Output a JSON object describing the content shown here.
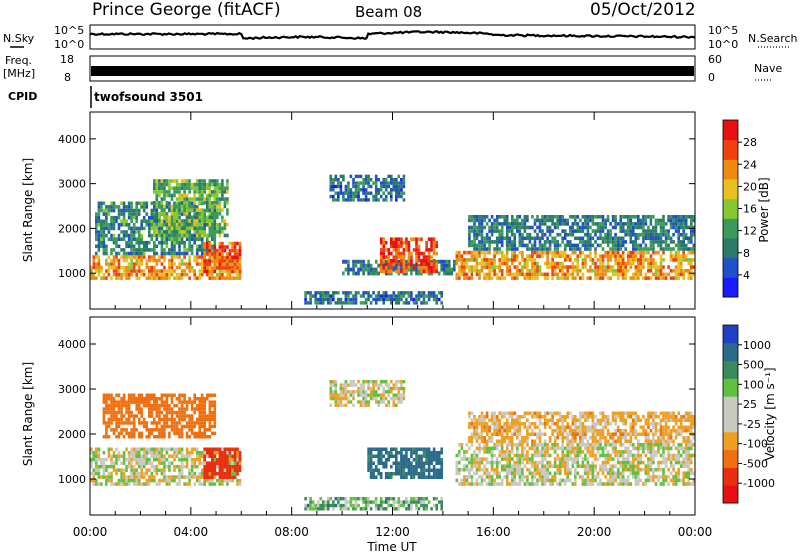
{
  "header": {
    "station": "Prince George (fitACF)",
    "beam": "Beam 08",
    "date": "05/Oct/2012"
  },
  "top_panels": {
    "nsky_label": "N.Sky",
    "nsearch_label": "N.Search",
    "nsky_ticks": [
      "10^5",
      "10^0"
    ],
    "nsearch_ticks": [
      "10^5",
      "10^0"
    ],
    "freq_label": "Freq.",
    "freq_unit": "[MHz]",
    "freq_ticks": [
      "18",
      "8"
    ],
    "nave_label": "Nave",
    "nave_ticks": [
      "60",
      "0"
    ],
    "cpid_label": "CPID",
    "cpid_value": "twofsound 3501"
  },
  "colors": {
    "noise_trace": "#000000",
    "power_scale": [
      "#1a1aff",
      "#2050c8",
      "#2a7a6a",
      "#3a9a5a",
      "#86c830",
      "#e8c020",
      "#f08a10",
      "#f04010",
      "#e81010"
    ],
    "velocity_scale": [
      "#2040c8",
      "#2a6a8a",
      "#3a8a5a",
      "#60c040",
      "#c8c8c0",
      "#c8c8c0",
      "#f0a020",
      "#f07010",
      "#e83010",
      "#e81010"
    ]
  },
  "chart_data": [
    {
      "type": "heatmap",
      "name": "power",
      "ylabel": "Slant Range [km]",
      "yticks": [
        1000,
        2000,
        3000,
        4000
      ],
      "ylim": [
        200,
        4600
      ],
      "xlim_hours": [
        0,
        24
      ],
      "colorbar_label": "Power [dB]",
      "colorbar_ticks": [
        4,
        8,
        12,
        16,
        20,
        24,
        28
      ],
      "colorbar_range": [
        0,
        32
      ],
      "echo_regions": [
        {
          "t0": 0.0,
          "t1": 6.0,
          "r0": 850,
          "r1": 1400,
          "level": 22
        },
        {
          "t0": 0.2,
          "t1": 5.0,
          "r0": 1400,
          "r1": 2600,
          "level": 10
        },
        {
          "t0": 2.5,
          "t1": 5.5,
          "r0": 1800,
          "r1": 3100,
          "level": 14
        },
        {
          "t0": 4.5,
          "t1": 6.0,
          "r0": 1000,
          "r1": 1700,
          "level": 26
        },
        {
          "t0": 10.0,
          "t1": 14.5,
          "r0": 950,
          "r1": 1300,
          "level": 9
        },
        {
          "t0": 11.5,
          "t1": 13.8,
          "r0": 1000,
          "r1": 1800,
          "level": 27
        },
        {
          "t0": 9.5,
          "t1": 12.5,
          "r0": 2600,
          "r1": 3200,
          "level": 8
        },
        {
          "t0": 8.5,
          "t1": 14.0,
          "r0": 300,
          "r1": 600,
          "level": 8
        },
        {
          "t0": 14.5,
          "t1": 24.0,
          "r0": 850,
          "r1": 1500,
          "level": 22
        },
        {
          "t0": 15.0,
          "t1": 24.0,
          "r0": 1500,
          "r1": 2300,
          "level": 9
        }
      ]
    },
    {
      "type": "heatmap",
      "name": "velocity",
      "ylabel": "Slant Range [km]",
      "yticks": [
        1000,
        2000,
        3000,
        4000
      ],
      "ylim": [
        200,
        4600
      ],
      "xlim_hours": [
        0,
        24
      ],
      "xticks": [
        "00:00",
        "04:00",
        "08:00",
        "12:00",
        "16:00",
        "20:00",
        "00:00"
      ],
      "xlabel": "Time UT",
      "colorbar_label": "Velocity [m s⁻¹]",
      "colorbar_ticks": [
        "1000",
        "500",
        "100",
        "25",
        "-25",
        "-100",
        "-500",
        "-1000"
      ],
      "echo_regions": [
        {
          "t0": 0.0,
          "t1": 6.0,
          "r0": 850,
          "r1": 1700,
          "vel": 0
        },
        {
          "t0": 0.5,
          "t1": 5.0,
          "r0": 1900,
          "r1": 2900,
          "vel": -300
        },
        {
          "t0": 4.5,
          "t1": 6.0,
          "r0": 1000,
          "r1": 1700,
          "vel": -600
        },
        {
          "t0": 11.0,
          "t1": 14.0,
          "r0": 1000,
          "r1": 1700,
          "vel": 150
        },
        {
          "t0": 9.5,
          "t1": 12.5,
          "r0": 2600,
          "r1": 3200,
          "vel": 0
        },
        {
          "t0": 8.5,
          "t1": 14.0,
          "r0": 300,
          "r1": 600,
          "vel": 50
        },
        {
          "t0": 14.5,
          "t1": 24.0,
          "r0": 850,
          "r1": 1800,
          "vel": 0
        },
        {
          "t0": 15.0,
          "t1": 24.0,
          "r0": 1800,
          "r1": 2500,
          "vel": -50
        }
      ]
    }
  ]
}
